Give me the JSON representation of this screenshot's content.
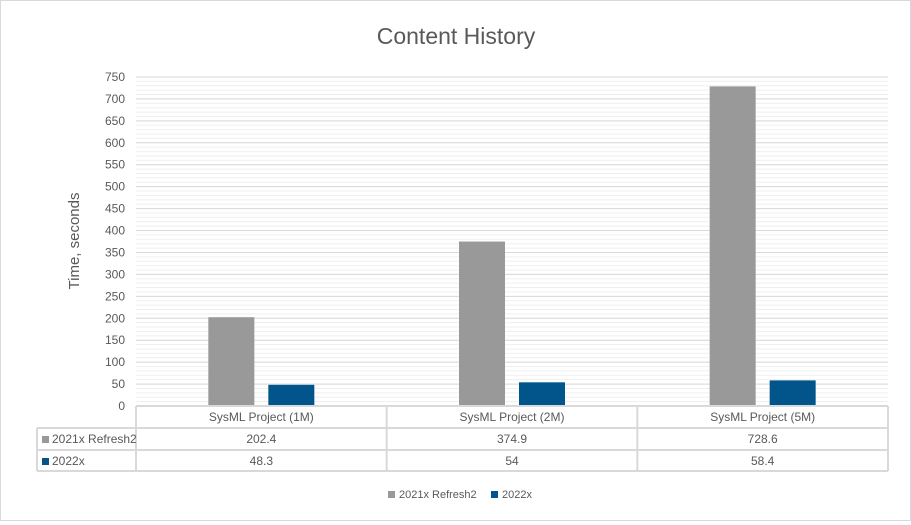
{
  "chart_data": {
    "type": "bar",
    "title": "Content History",
    "ylabel": "Time, seconds",
    "xlabel": "",
    "ylim": [
      0,
      750
    ],
    "yticks": [
      0,
      50,
      100,
      150,
      200,
      250,
      300,
      350,
      400,
      450,
      500,
      550,
      600,
      650,
      700,
      750
    ],
    "minor_grid_step": 10,
    "grid": true,
    "legend_position": "bottom",
    "data_table": true,
    "categories": [
      "SysML Project (1M)",
      "SysML Project (2M)",
      "SysML Project (5M)"
    ],
    "series": [
      {
        "name": "2021x Refresh2",
        "values": [
          202.4,
          374.9,
          728.6
        ],
        "value_labels": [
          "202.4",
          "374.9",
          "728.6"
        ],
        "color": "#999999"
      },
      {
        "name": "2022x",
        "values": [
          48.3,
          54,
          58.4
        ],
        "value_labels": [
          "48.3",
          "54",
          "58.4"
        ],
        "color": "#02558b"
      }
    ]
  }
}
